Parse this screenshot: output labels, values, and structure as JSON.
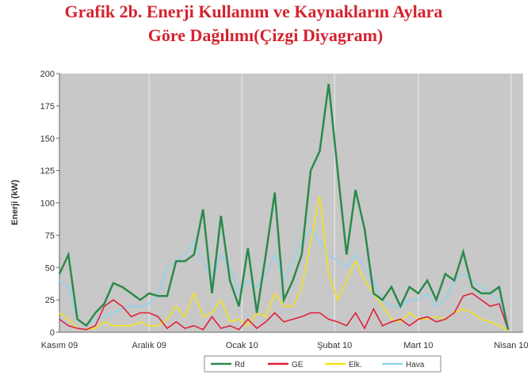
{
  "chart_data": {
    "type": "line",
    "title": "Grafik 2b. Enerji Kullanım ve Kaynakların Aylara",
    "subtitle": "Göre Dağılımı(Çizgi Diyagram)",
    "y_label": "Enerji (kW)",
    "x": [
      0,
      3,
      6,
      9,
      12,
      15,
      18,
      21,
      24,
      27,
      30,
      33,
      36,
      39,
      42,
      45,
      48,
      51,
      54,
      57,
      60,
      63,
      66,
      69,
      72,
      75,
      78,
      81,
      84,
      87,
      90,
      93,
      96,
      99,
      102,
      105,
      108,
      111,
      114,
      117,
      120,
      123,
      126,
      129,
      132,
      135,
      138,
      141,
      144,
      147,
      150
    ],
    "series": [
      {
        "name": "Rd",
        "color": "#2a8a4a",
        "values": [
          45,
          60,
          10,
          5,
          15,
          22,
          38,
          35,
          30,
          25,
          30,
          28,
          28,
          55,
          55,
          60,
          95,
          30,
          90,
          40,
          20,
          65,
          15,
          60,
          108,
          25,
          40,
          60,
          125,
          140,
          192,
          125,
          60,
          110,
          80,
          30,
          25,
          35,
          20,
          35,
          30,
          40,
          25,
          45,
          40,
          62,
          35,
          30,
          30,
          35,
          2
        ]
      },
      {
        "name": "GE",
        "color": "#e0203a",
        "values": [
          10,
          5,
          3,
          2,
          5,
          20,
          25,
          20,
          12,
          15,
          15,
          12,
          3,
          8,
          3,
          5,
          2,
          12,
          3,
          5,
          2,
          10,
          3,
          8,
          15,
          8,
          10,
          12,
          15,
          15,
          10,
          8,
          5,
          15,
          3,
          18,
          5,
          8,
          10,
          5,
          10,
          12,
          8,
          10,
          15,
          28,
          30,
          25,
          20,
          22,
          2
        ]
      },
      {
        "name": "Elk.",
        "color": "#f2e31a",
        "values": [
          15,
          10,
          3,
          2,
          3,
          8,
          5,
          5,
          5,
          8,
          5,
          5,
          10,
          20,
          12,
          30,
          12,
          15,
          25,
          8,
          10,
          5,
          15,
          12,
          30,
          20,
          20,
          35,
          70,
          105,
          45,
          25,
          40,
          55,
          40,
          30,
          20,
          10,
          8,
          15,
          10,
          10,
          12,
          10,
          15,
          18,
          15,
          10,
          8,
          5,
          1
        ]
      },
      {
        "name": "Hava",
        "color": "#8fd3ee",
        "values": [
          40,
          35,
          10,
          5,
          10,
          12,
          15,
          18,
          20,
          20,
          22,
          30,
          50,
          55,
          60,
          70,
          55,
          40,
          60,
          50,
          30,
          40,
          35,
          45,
          60,
          40,
          55,
          70,
          80,
          70,
          60,
          55,
          50,
          60,
          50,
          40,
          25,
          20,
          20,
          25,
          25,
          30,
          20,
          25,
          40,
          45,
          40,
          35,
          30,
          25,
          3
        ]
      }
    ],
    "xlim": [
      0,
      155
    ],
    "xticks": [
      {
        "value": 0,
        "label": "Kasım 09"
      },
      {
        "value": 30,
        "label": "Aralık 09"
      },
      {
        "value": 61,
        "label": "Ocak 10"
      },
      {
        "value": 92,
        "label": "Şubat 10"
      },
      {
        "value": 120,
        "label": "Mart 10"
      },
      {
        "value": 151,
        "label": "Nisan 10"
      }
    ],
    "ylim": [
      0,
      200
    ],
    "yticks": [
      0,
      25,
      50,
      75,
      100,
      125,
      150,
      175,
      200
    ],
    "grid": true,
    "legend": "bottom"
  }
}
